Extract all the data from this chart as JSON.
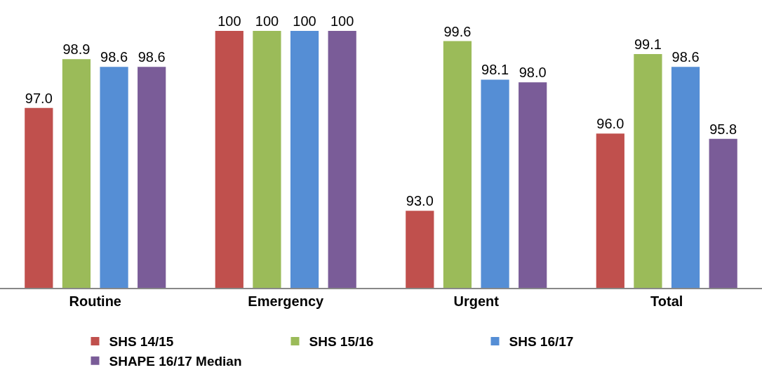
{
  "chart_data": {
    "type": "bar",
    "categories": [
      "Routine",
      "Emergency",
      "Urgent",
      "Total"
    ],
    "series": [
      {
        "name": "SHS 14/15",
        "color": "#c0504d",
        "values": [
          97.0,
          100,
          93.0,
          96.0
        ],
        "value_labels": [
          "97.0",
          "100",
          "93.0",
          "96.0"
        ]
      },
      {
        "name": "SHS 15/16",
        "color": "#9bbb59",
        "values": [
          98.9,
          100,
          99.6,
          99.1
        ],
        "value_labels": [
          "98.9",
          "100",
          "99.6",
          "99.1"
        ]
      },
      {
        "name": "SHS 16/17",
        "color": "#558ed5",
        "values": [
          98.6,
          100,
          98.1,
          98.6
        ],
        "value_labels": [
          "98.6",
          "100",
          "98.1",
          "98.6"
        ]
      },
      {
        "name": "SHAPE 16/17 Median",
        "color": "#7a5c98",
        "values": [
          98.6,
          100,
          98.0,
          95.8
        ],
        "value_labels": [
          "98.6",
          "100",
          "98.0",
          "95.8"
        ]
      }
    ],
    "ylim": [
      90,
      101.2
    ],
    "tick_labels": "x",
    "grid": false,
    "legend": "bottom"
  }
}
